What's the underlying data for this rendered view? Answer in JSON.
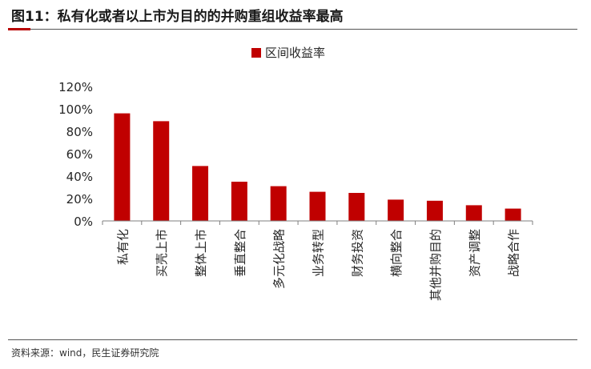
{
  "figure": {
    "title": "图11：私有化或者以上市为目的的并购重组收益率最高",
    "source": "资料来源：wind，民生证券研究院"
  },
  "colors": {
    "bar": "#C00000",
    "axis": "#7f7f7f",
    "text": "#262626"
  },
  "chart_data": {
    "type": "bar",
    "title": "",
    "xlabel": "",
    "ylabel": "",
    "categories": [
      "私有化",
      "买壳上市",
      "整体上市",
      "垂直整合",
      "多元化战略",
      "业务转型",
      "财务投资",
      "横向整合",
      "其他并购目的",
      "资产调整",
      "战略合作"
    ],
    "series": [
      {
        "name": "区间收益率",
        "values": [
          96,
          89,
          49,
          35,
          31,
          26,
          25,
          19,
          18,
          14,
          11
        ]
      }
    ],
    "ylim": [
      0,
      120
    ],
    "yticks": [
      0,
      20,
      40,
      60,
      80,
      100,
      120
    ],
    "ytick_labels": [
      "0%",
      "20%",
      "40%",
      "60%",
      "80%",
      "100%",
      "120%"
    ],
    "grid": false,
    "legend_position": "top-center"
  }
}
